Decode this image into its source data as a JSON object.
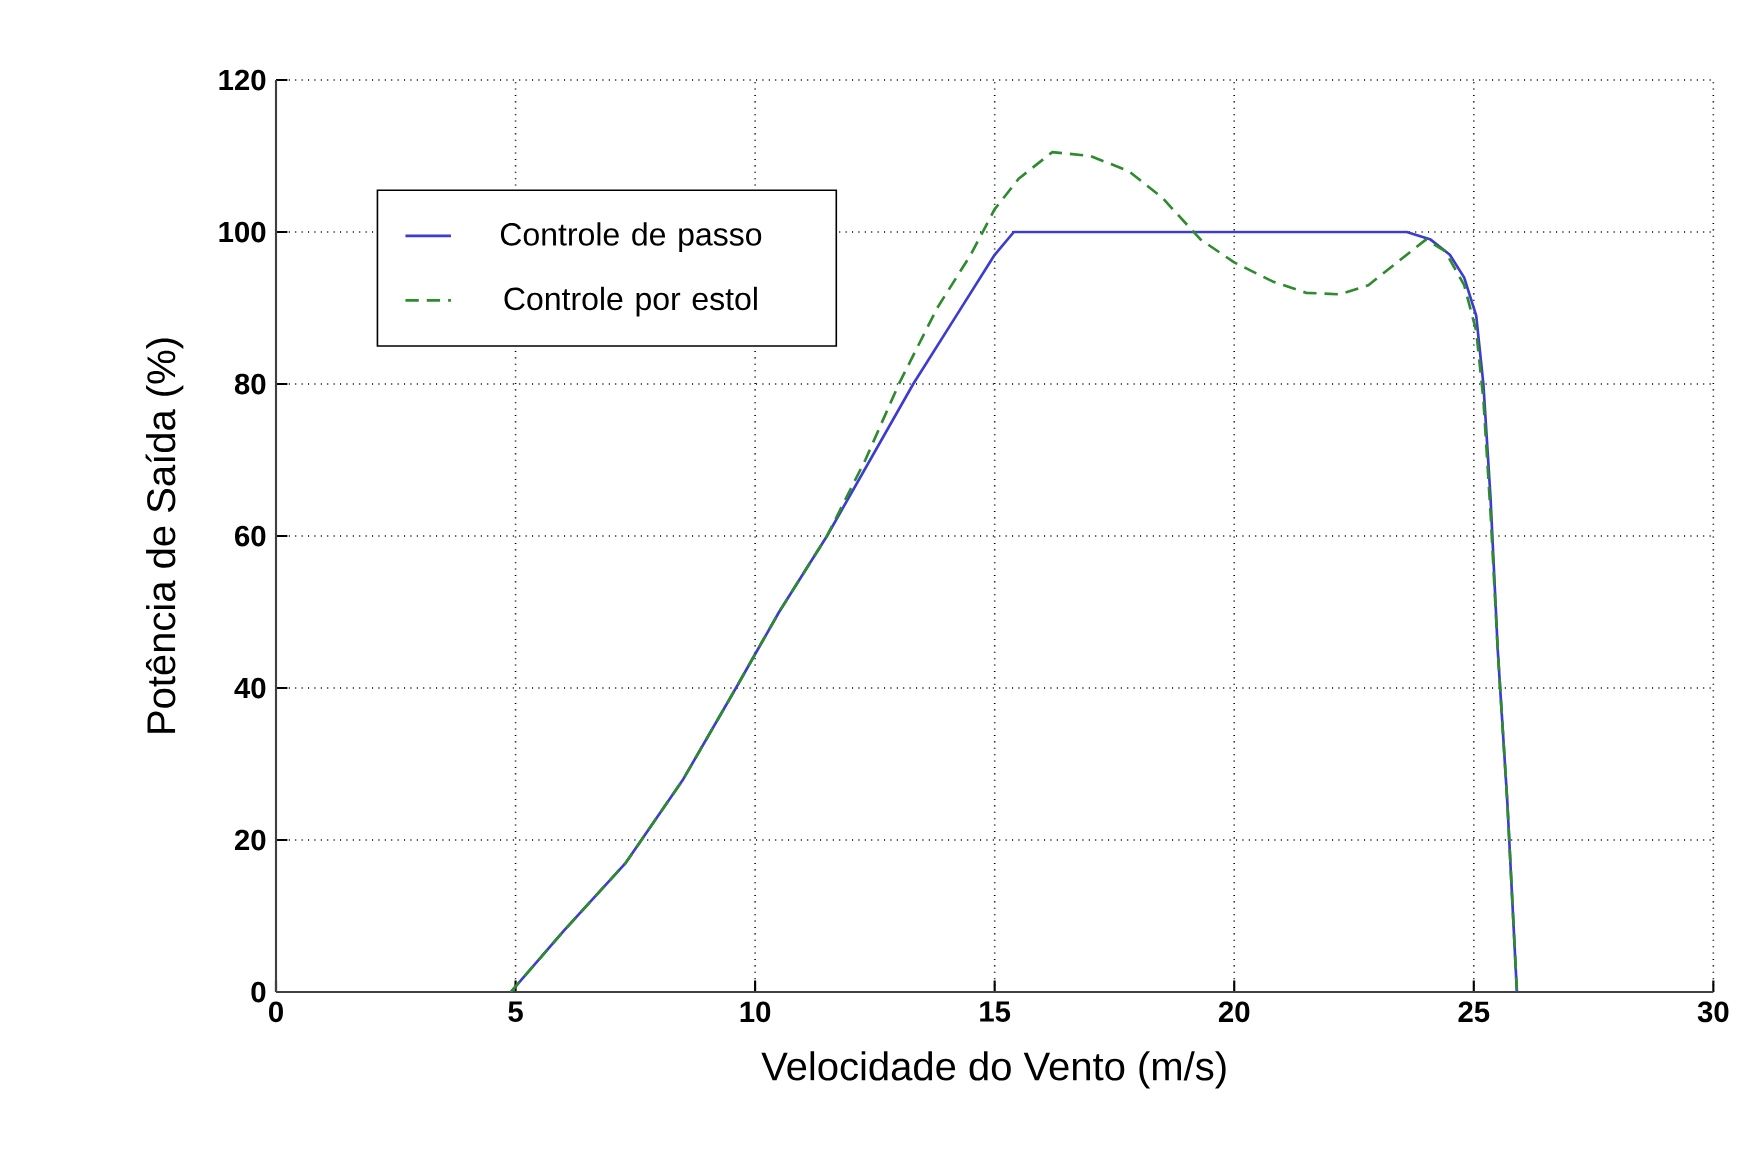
{
  "chart_data": {
    "type": "line",
    "xlabel": "Velocidade do Vento (m/s)",
    "ylabel": "Potência de Saída (%)",
    "xlim": [
      0,
      30
    ],
    "xticks": [
      0,
      5,
      10,
      15,
      20,
      25,
      30
    ],
    "ylim": [
      0,
      120
    ],
    "yticks": [
      0,
      20,
      40,
      60,
      80,
      100,
      120
    ],
    "grid": true,
    "legend": "top left",
    "marker": "none",
    "series": [
      {
        "name": "Controle de passo",
        "color": "#3c3cd0",
        "line_style": "solid",
        "x": [
          4.9,
          6,
          7.3,
          8.5,
          9.6,
          10.5,
          11.5,
          12.4,
          13.3,
          14.2,
          15,
          15.4,
          17,
          19,
          21,
          23,
          23.6,
          24.1,
          24.5,
          24.8,
          25.05,
          25.2,
          25.35,
          25.5,
          25.7,
          25.9
        ],
        "values": [
          0,
          8,
          17,
          28,
          40,
          50,
          60,
          70,
          80,
          89,
          97,
          100,
          100,
          100,
          100,
          100,
          100,
          99,
          97,
          94,
          89,
          80,
          65,
          45,
          25,
          0
        ]
      },
      {
        "name": "Controle por estol",
        "color": "#2e8b2e",
        "line_style": "dashed",
        "x": [
          4.9,
          6,
          7.3,
          8.5,
          9.6,
          10.5,
          11.5,
          12.3,
          13,
          13.8,
          14.5,
          15,
          15.5,
          16.2,
          17,
          17.8,
          18.5,
          19.3,
          20,
          20.8,
          21.5,
          22.2,
          22.8,
          23.4,
          24,
          24.4,
          24.8,
          25.05,
          25.2,
          25.35,
          25.5,
          25.7,
          25.9
        ],
        "values": [
          0,
          8,
          17,
          28,
          40,
          50,
          60,
          70,
          80,
          90,
          97,
          103,
          107,
          110.5,
          110,
          108,
          104.5,
          99,
          96,
          93.5,
          92,
          91.8,
          93,
          96,
          99,
          97.5,
          93,
          87,
          78,
          63,
          45,
          25,
          0
        ]
      }
    ]
  }
}
